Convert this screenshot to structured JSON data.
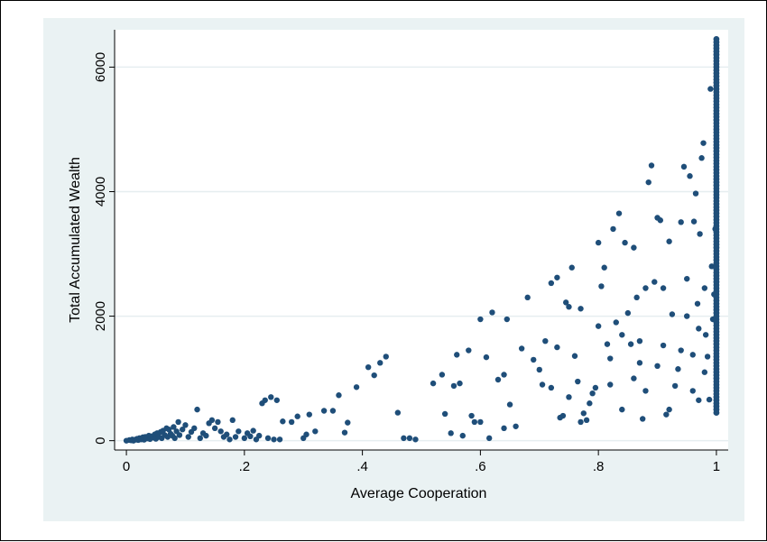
{
  "chart_data": {
    "type": "scatter",
    "title": "",
    "xlabel": "Average Cooperation",
    "ylabel": "Total Accumulated Wealth",
    "xlim": [
      -0.02,
      1.02
    ],
    "ylim": [
      -150,
      6600
    ],
    "x_ticks": [
      0,
      0.2,
      0.4,
      0.6,
      0.8,
      1
    ],
    "x_tick_labels": [
      "0",
      ".2",
      ".4",
      ".6",
      ".8",
      "1"
    ],
    "y_ticks": [
      0,
      2000,
      4000,
      6000
    ],
    "y_tick_labels": [
      "0",
      "2000",
      "4000",
      "6000"
    ],
    "grid": "horizontal",
    "colors": {
      "marker": "#1f4e79",
      "outer_bg": "#eaf2f3",
      "plot_bg": "#ffffff",
      "grid": "#e6eef0"
    },
    "series": [
      {
        "points": [
          [
            0.0,
            0
          ],
          [
            0.005,
            10
          ],
          [
            0.008,
            5
          ],
          [
            0.01,
            20
          ],
          [
            0.012,
            0
          ],
          [
            0.015,
            15
          ],
          [
            0.018,
            30
          ],
          [
            0.02,
            10
          ],
          [
            0.022,
            40
          ],
          [
            0.025,
            20
          ],
          [
            0.028,
            55
          ],
          [
            0.03,
            15
          ],
          [
            0.032,
            60
          ],
          [
            0.035,
            35
          ],
          [
            0.038,
            80
          ],
          [
            0.04,
            25
          ],
          [
            0.042,
            70
          ],
          [
            0.045,
            50
          ],
          [
            0.048,
            100
          ],
          [
            0.05,
            30
          ],
          [
            0.052,
            120
          ],
          [
            0.055,
            60
          ],
          [
            0.058,
            140
          ],
          [
            0.06,
            40
          ],
          [
            0.062,
            160
          ],
          [
            0.065,
            90
          ],
          [
            0.068,
            200
          ],
          [
            0.07,
            60
          ],
          [
            0.072,
            180
          ],
          [
            0.075,
            110
          ],
          [
            0.078,
            80
          ],
          [
            0.08,
            220
          ],
          [
            0.082,
            40
          ],
          [
            0.085,
            150
          ],
          [
            0.088,
            300
          ],
          [
            0.09,
            90
          ],
          [
            0.095,
            180
          ],
          [
            0.1,
            250
          ],
          [
            0.105,
            60
          ],
          [
            0.11,
            140
          ],
          [
            0.115,
            200
          ],
          [
            0.12,
            500
          ],
          [
            0.125,
            40
          ],
          [
            0.13,
            120
          ],
          [
            0.135,
            80
          ],
          [
            0.14,
            280
          ],
          [
            0.145,
            330
          ],
          [
            0.15,
            200
          ],
          [
            0.155,
            300
          ],
          [
            0.16,
            150
          ],
          [
            0.165,
            60
          ],
          [
            0.17,
            100
          ],
          [
            0.175,
            20
          ],
          [
            0.18,
            330
          ],
          [
            0.185,
            60
          ],
          [
            0.19,
            150
          ],
          [
            0.2,
            40
          ],
          [
            0.205,
            120
          ],
          [
            0.21,
            70
          ],
          [
            0.215,
            160
          ],
          [
            0.22,
            20
          ],
          [
            0.225,
            80
          ],
          [
            0.23,
            600
          ],
          [
            0.235,
            650
          ],
          [
            0.24,
            40
          ],
          [
            0.245,
            700
          ],
          [
            0.25,
            20
          ],
          [
            0.255,
            650
          ],
          [
            0.26,
            20
          ],
          [
            0.265,
            310
          ],
          [
            0.28,
            300
          ],
          [
            0.29,
            390
          ],
          [
            0.3,
            40
          ],
          [
            0.305,
            100
          ],
          [
            0.31,
            420
          ],
          [
            0.32,
            150
          ],
          [
            0.335,
            480
          ],
          [
            0.35,
            480
          ],
          [
            0.36,
            730
          ],
          [
            0.37,
            130
          ],
          [
            0.375,
            290
          ],
          [
            0.39,
            860
          ],
          [
            0.41,
            1180
          ],
          [
            0.42,
            1050
          ],
          [
            0.43,
            1250
          ],
          [
            0.44,
            1350
          ],
          [
            0.46,
            450
          ],
          [
            0.47,
            40
          ],
          [
            0.48,
            40
          ],
          [
            0.49,
            20
          ],
          [
            0.52,
            920
          ],
          [
            0.535,
            1060
          ],
          [
            0.54,
            430
          ],
          [
            0.55,
            120
          ],
          [
            0.56,
            1380
          ],
          [
            0.565,
            920
          ],
          [
            0.57,
            80
          ],
          [
            0.58,
            1450
          ],
          [
            0.59,
            300
          ],
          [
            0.6,
            1950
          ],
          [
            0.61,
            1340
          ],
          [
            0.615,
            40
          ],
          [
            0.62,
            2060
          ],
          [
            0.63,
            980
          ],
          [
            0.64,
            200
          ],
          [
            0.645,
            1950
          ],
          [
            0.65,
            580
          ],
          [
            0.66,
            230
          ],
          [
            0.67,
            1480
          ],
          [
            0.68,
            2300
          ],
          [
            0.69,
            1300
          ],
          [
            0.7,
            1140
          ],
          [
            0.705,
            900
          ],
          [
            0.71,
            1600
          ],
          [
            0.72,
            2530
          ],
          [
            0.73,
            2620
          ],
          [
            0.735,
            370
          ],
          [
            0.74,
            400
          ],
          [
            0.745,
            2220
          ],
          [
            0.75,
            2150
          ],
          [
            0.755,
            2780
          ],
          [
            0.76,
            1360
          ],
          [
            0.765,
            950
          ],
          [
            0.77,
            300
          ],
          [
            0.775,
            440
          ],
          [
            0.78,
            330
          ],
          [
            0.785,
            600
          ],
          [
            0.79,
            760
          ],
          [
            0.795,
            850
          ],
          [
            0.8,
            3180
          ],
          [
            0.805,
            2480
          ],
          [
            0.81,
            2780
          ],
          [
            0.815,
            1550
          ],
          [
            0.82,
            1320
          ],
          [
            0.825,
            3400
          ],
          [
            0.83,
            1900
          ],
          [
            0.835,
            3650
          ],
          [
            0.84,
            1700
          ],
          [
            0.845,
            3180
          ],
          [
            0.85,
            2050
          ],
          [
            0.855,
            1550
          ],
          [
            0.86,
            3100
          ],
          [
            0.865,
            2300
          ],
          [
            0.87,
            1250
          ],
          [
            0.875,
            350
          ],
          [
            0.88,
            2450
          ],
          [
            0.885,
            4150
          ],
          [
            0.89,
            4420
          ],
          [
            0.895,
            2550
          ],
          [
            0.9,
            3580
          ],
          [
            0.905,
            3540
          ],
          [
            0.91,
            1530
          ],
          [
            0.915,
            420
          ],
          [
            0.92,
            3200
          ],
          [
            0.925,
            2030
          ],
          [
            0.93,
            880
          ],
          [
            0.935,
            1150
          ],
          [
            0.94,
            3510
          ],
          [
            0.945,
            4400
          ],
          [
            0.95,
            2000
          ],
          [
            0.955,
            4250
          ],
          [
            0.96,
            1380
          ],
          [
            0.962,
            3520
          ],
          [
            0.965,
            3970
          ],
          [
            0.968,
            2200
          ],
          [
            0.97,
            650
          ],
          [
            0.972,
            3320
          ],
          [
            0.975,
            4540
          ],
          [
            0.978,
            4780
          ],
          [
            0.98,
            2450
          ],
          [
            0.982,
            1700
          ],
          [
            0.985,
            1350
          ],
          [
            0.988,
            660
          ],
          [
            0.99,
            5650
          ],
          [
            0.992,
            2800
          ],
          [
            0.994,
            1950
          ],
          [
            0.996,
            2350
          ],
          [
            0.998,
            3400
          ],
          [
            0.64,
            1060
          ],
          [
            0.585,
            400
          ],
          [
            0.555,
            880
          ],
          [
            0.6,
            300
          ],
          [
            0.72,
            850
          ],
          [
            0.77,
            2120
          ],
          [
            0.8,
            1840
          ],
          [
            0.84,
            500
          ],
          [
            0.86,
            1000
          ],
          [
            0.88,
            800
          ],
          [
            0.9,
            1200
          ],
          [
            0.92,
            500
          ],
          [
            0.94,
            1450
          ],
          [
            0.96,
            800
          ],
          [
            0.98,
            1100
          ],
          [
            0.75,
            700
          ],
          [
            0.73,
            1500
          ],
          [
            0.82,
            900
          ],
          [
            0.87,
            1600
          ],
          [
            0.91,
            2450
          ],
          [
            0.95,
            2600
          ],
          [
            0.97,
            1800
          ]
        ]
      }
    ],
    "dense_column": {
      "x": 1.0,
      "y_min": 450,
      "y_max": 6450
    }
  }
}
